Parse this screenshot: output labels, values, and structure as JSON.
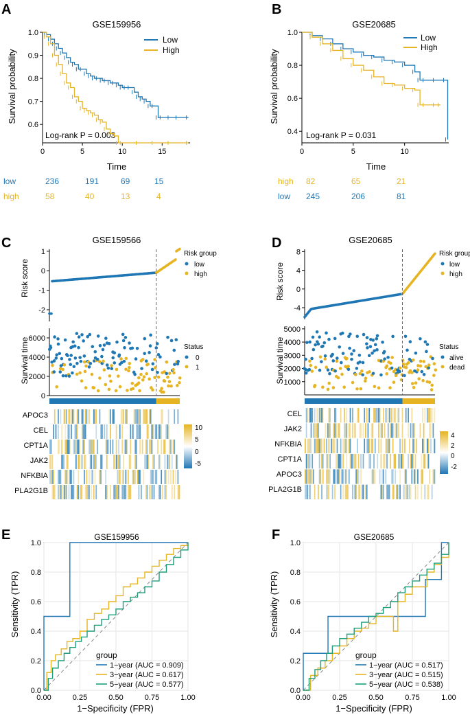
{
  "colors": {
    "low": "#1f77b4",
    "high": "#e6b422",
    "axis": "#000000",
    "grid": "#ebebeb",
    "gray": "#888888"
  },
  "panels": {
    "A": {
      "letter": "A"
    },
    "B": {
      "letter": "B"
    },
    "C": {
      "letter": "C"
    },
    "D": {
      "letter": "D"
    },
    "E": {
      "letter": "E"
    },
    "F": {
      "letter": "F"
    }
  },
  "chart_data": [
    {
      "id": "A",
      "type": "line",
      "title": "GSE159956",
      "xlabel": "Time",
      "ylabel": "Survival probability",
      "xlim": [
        0,
        18.5
      ],
      "ylim": [
        0.52,
        1.0
      ],
      "xticks": [
        0,
        5,
        10,
        15
      ],
      "yticks": [
        0.6,
        0.7,
        0.8,
        0.9,
        1.0
      ],
      "ytick_labels": [
        "0.6",
        "0.7",
        "0.8",
        "0.9",
        "1.0"
      ],
      "legend": [
        "Low",
        "High"
      ],
      "annotation": "Log-rank P = 0.003",
      "series": [
        {
          "name": "Low",
          "color": "low",
          "x": [
            0,
            0.5,
            1,
            1.5,
            2,
            2.5,
            3,
            3.5,
            4,
            4.5,
            5,
            5.5,
            6,
            6.5,
            7,
            7.5,
            8,
            8.5,
            9,
            9.5,
            10,
            10.5,
            11,
            11.5,
            12,
            12.5,
            13,
            13.5,
            14,
            14.5,
            15,
            16,
            17,
            18.3
          ],
          "y": [
            1.0,
            0.99,
            0.97,
            0.95,
            0.93,
            0.91,
            0.89,
            0.87,
            0.86,
            0.84,
            0.84,
            0.82,
            0.81,
            0.8,
            0.8,
            0.79,
            0.79,
            0.78,
            0.78,
            0.77,
            0.76,
            0.76,
            0.76,
            0.74,
            0.72,
            0.71,
            0.7,
            0.68,
            0.68,
            0.63,
            0.63,
            0.63,
            0.63,
            0.63
          ]
        },
        {
          "name": "High",
          "color": "high",
          "x": [
            0,
            0.5,
            1,
            1.5,
            2,
            2.5,
            3,
            3.5,
            4,
            4.5,
            5,
            5.5,
            6,
            6.5,
            7,
            7.5,
            8,
            8.5,
            9,
            9.5,
            10,
            12,
            14,
            16,
            18.3
          ],
          "y": [
            1.0,
            0.98,
            0.95,
            0.9,
            0.86,
            0.82,
            0.78,
            0.76,
            0.72,
            0.7,
            0.67,
            0.66,
            0.65,
            0.64,
            0.62,
            0.61,
            0.58,
            0.56,
            0.55,
            0.52,
            0.52,
            0.52,
            0.52,
            0.52,
            0.52
          ]
        }
      ],
      "risk_table": {
        "rows": [
          {
            "label": "low",
            "color": "low",
            "values": [
              "236",
              "191",
              "69",
              "15"
            ]
          },
          {
            "label": "high",
            "color": "high",
            "values": [
              "58",
              "40",
              "13",
              "4"
            ]
          }
        ]
      }
    },
    {
      "id": "B",
      "type": "line",
      "title": "GSE20685",
      "xlabel": "Time",
      "ylabel": "Survival probability",
      "xlim": [
        0,
        14.3
      ],
      "ylim": [
        0.33,
        1.0
      ],
      "xticks": [
        0,
        5,
        10
      ],
      "yticks": [
        0.4,
        0.6,
        0.8,
        1.0
      ],
      "ytick_labels": [
        "0.4",
        "0.6",
        "0.8",
        "1.0"
      ],
      "legend": [
        "Low",
        "High"
      ],
      "annotation": "Log-rank P = 0.031",
      "series": [
        {
          "name": "Low",
          "color": "low",
          "x": [
            0,
            1,
            2,
            3,
            4,
            5,
            6,
            7,
            8,
            9,
            10,
            11,
            11.5,
            12,
            13,
            14,
            14.2
          ],
          "y": [
            1.0,
            0.98,
            0.96,
            0.93,
            0.9,
            0.88,
            0.86,
            0.85,
            0.83,
            0.82,
            0.8,
            0.76,
            0.71,
            0.71,
            0.71,
            0.71,
            0.35
          ]
        },
        {
          "name": "High",
          "color": "high",
          "x": [
            0,
            1,
            2,
            3,
            4,
            5,
            6,
            7,
            8,
            9,
            10,
            11,
            11.5,
            12,
            13,
            13.5
          ],
          "y": [
            1.0,
            0.97,
            0.93,
            0.89,
            0.84,
            0.8,
            0.77,
            0.73,
            0.69,
            0.68,
            0.66,
            0.65,
            0.56,
            0.56,
            0.56,
            0.56
          ]
        }
      ],
      "risk_table": {
        "rows": [
          {
            "label": "high",
            "color": "high",
            "values": [
              "82",
              "65",
              "21"
            ]
          },
          {
            "label": "low",
            "color": "low",
            "values": [
              "245",
              "206",
              "81"
            ]
          }
        ]
      }
    },
    {
      "id": "C",
      "type": "scatter",
      "title": "GSE159566",
      "risk": {
        "ylabel": "Risk score",
        "yticks": [
          1,
          0,
          -1,
          -2
        ],
        "ylim": [
          -2.6,
          1.1
        ],
        "cutoff_fraction": 0.82,
        "legend_title": "Risk group",
        "legend": [
          "low",
          "high"
        ]
      },
      "survival": {
        "ylabel": "Survival time",
        "yticks": [
          0,
          2000,
          4000,
          6000
        ],
        "ylim": [
          0,
          7000
        ],
        "legend_title": "Status",
        "legend": [
          "0",
          "1"
        ]
      },
      "heatmap": {
        "genes": [
          "APOC3",
          "CEL",
          "CPT1A",
          "JAK2",
          "NFKBIA",
          "PLA2G1B"
        ],
        "colorbar_ticks": [
          "10",
          "5",
          "0",
          "-5"
        ]
      }
    },
    {
      "id": "D",
      "type": "scatter",
      "title": "GSE20685",
      "risk": {
        "ylabel": "Risk score",
        "yticks": [
          8,
          4,
          0,
          -4
        ],
        "ylim": [
          -6.5,
          8.5
        ],
        "cutoff_fraction": 0.75,
        "legend_title": "Risk group",
        "legend": [
          "low",
          "high"
        ]
      },
      "survival": {
        "ylabel": "Survival time",
        "yticks": [
          1000,
          2000,
          3000,
          4000,
          5000
        ],
        "ylim": [
          0,
          5200
        ],
        "legend_title": "Status",
        "legend": [
          "alive",
          "dead"
        ]
      },
      "heatmap": {
        "genes": [
          "CEL",
          "JAK2",
          "NFKBIA",
          "CPT1A",
          "APOC3",
          "PLA2G1B"
        ],
        "colorbar_ticks": [
          "4",
          "2",
          "0",
          "-2"
        ]
      }
    },
    {
      "id": "E",
      "type": "line",
      "title": "GSE159956",
      "xlabel": "1−Specificity (FPR)",
      "ylabel": "Sensitivity (TPR)",
      "xlim": [
        0,
        1
      ],
      "ylim": [
        0,
        1
      ],
      "ticks": [
        0,
        0.25,
        0.5,
        0.75,
        1
      ],
      "xtick_labels": [
        "0.00",
        "0.25",
        "0.50",
        "0.75",
        "1.00"
      ],
      "ytick_labels": [
        "0.0",
        "0.2",
        "0.4",
        "0.6",
        "0.8",
        "1.0"
      ],
      "legend_title": "group",
      "series": [
        {
          "name": "1−year (AUC = 0.909)",
          "color": "#1f77b4",
          "x": [
            0,
            0,
            0.02,
            0.02,
            0.18,
            0.18,
            0.62,
            0.62,
            1.0,
            1.0
          ],
          "y": [
            0,
            0.5,
            0.5,
            0.5,
            0.5,
            1.0,
            1.0,
            1.0,
            1.0,
            1.0
          ]
        },
        {
          "name": "3−year (AUC = 0.617)",
          "color": "#e6b422",
          "x": [
            0,
            0.02,
            0.05,
            0.08,
            0.12,
            0.16,
            0.2,
            0.25,
            0.3,
            0.35,
            0.4,
            0.45,
            0.5,
            0.55,
            0.6,
            0.65,
            0.7,
            0.75,
            0.8,
            0.85,
            0.9,
            0.95,
            1.0
          ],
          "y": [
            0,
            0.12,
            0.2,
            0.24,
            0.28,
            0.33,
            0.35,
            0.4,
            0.48,
            0.52,
            0.55,
            0.6,
            0.64,
            0.7,
            0.72,
            0.76,
            0.8,
            0.84,
            0.88,
            0.92,
            0.96,
            0.98,
            1.0
          ]
        },
        {
          "name": "5−year (AUC = 0.577)",
          "color": "#1a9e7a",
          "x": [
            0,
            0.03,
            0.06,
            0.1,
            0.14,
            0.18,
            0.22,
            0.26,
            0.3,
            0.35,
            0.4,
            0.45,
            0.5,
            0.55,
            0.6,
            0.65,
            0.7,
            0.75,
            0.8,
            0.85,
            0.9,
            0.95,
            1.0
          ],
          "y": [
            0,
            0.08,
            0.15,
            0.2,
            0.25,
            0.29,
            0.33,
            0.36,
            0.4,
            0.44,
            0.48,
            0.51,
            0.55,
            0.6,
            0.63,
            0.66,
            0.7,
            0.74,
            0.8,
            0.85,
            0.9,
            0.95,
            1.0
          ]
        }
      ]
    },
    {
      "id": "F",
      "type": "line",
      "title": "GSE20685",
      "xlabel": "1−Specificity (FPR)",
      "ylabel": "Sensitivity (TPR)",
      "xlim": [
        0,
        1
      ],
      "ylim": [
        0,
        1
      ],
      "ticks": [
        0,
        0.25,
        0.5,
        0.75,
        1
      ],
      "xtick_labels": [
        "0.00",
        "0.25",
        "0.50",
        "0.75",
        "1.00"
      ],
      "ytick_labels": [
        "0.0",
        "0.2",
        "0.4",
        "0.6",
        "0.8",
        "1.0"
      ],
      "legend_title": "group",
      "series": [
        {
          "name": "1−year (AUC = 0.517)",
          "color": "#1f77b4",
          "x": [
            0,
            0,
            0.08,
            0.08,
            0.17,
            0.17,
            0.5,
            0.5,
            0.84,
            0.84,
            0.95,
            0.95,
            1.0
          ],
          "y": [
            0,
            0.25,
            0.25,
            0.25,
            0.25,
            0.5,
            0.5,
            0.5,
            0.5,
            0.75,
            0.75,
            1.0,
            1.0
          ]
        },
        {
          "name": "3−year (AUC = 0.515)",
          "color": "#e6b422",
          "x": [
            0,
            0.05,
            0.1,
            0.15,
            0.2,
            0.25,
            0.3,
            0.35,
            0.4,
            0.45,
            0.5,
            0.55,
            0.6,
            0.62,
            0.65,
            0.7,
            0.75,
            0.8,
            0.85,
            0.9,
            0.95,
            1.0
          ],
          "y": [
            0,
            0.1,
            0.15,
            0.2,
            0.25,
            0.3,
            0.35,
            0.4,
            0.42,
            0.45,
            0.5,
            0.5,
            0.5,
            0.4,
            0.6,
            0.65,
            0.7,
            0.7,
            0.8,
            0.85,
            0.9,
            1.0
          ]
        },
        {
          "name": "5−year (AUC = 0.538)",
          "color": "#1a9e7a",
          "x": [
            0,
            0.04,
            0.08,
            0.12,
            0.16,
            0.2,
            0.25,
            0.3,
            0.35,
            0.4,
            0.45,
            0.5,
            0.55,
            0.6,
            0.65,
            0.7,
            0.75,
            0.8,
            0.85,
            0.9,
            0.95,
            1.0
          ],
          "y": [
            0,
            0.08,
            0.14,
            0.2,
            0.25,
            0.3,
            0.35,
            0.38,
            0.42,
            0.46,
            0.5,
            0.52,
            0.56,
            0.6,
            0.66,
            0.7,
            0.74,
            0.78,
            0.82,
            0.86,
            0.92,
            1.0
          ]
        }
      ]
    }
  ]
}
